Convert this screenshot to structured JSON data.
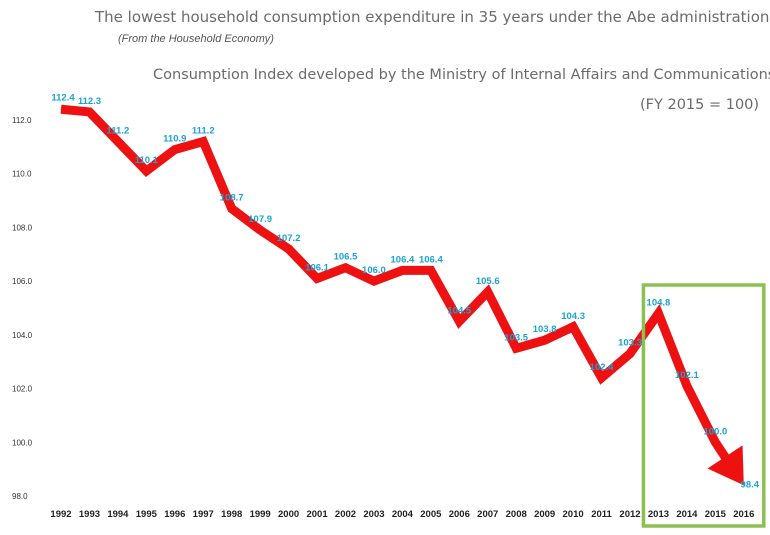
{
  "header": {
    "title": "The lowest household consumption expenditure in 35 years under the Abe administration",
    "subtitle": "(From the Household Economy)",
    "index_title": "Consumption Index developed by the Ministry of Internal Affairs and Communications",
    "base_note": "(FY 2015 = 100)"
  },
  "colors": {
    "line": "#ee1111",
    "data_label": "#1aa3d6",
    "highlight_box": "#8cc152",
    "axis_text": "#333333"
  },
  "chart_data": {
    "type": "line",
    "title": "Consumption Index developed by the Ministry of Internal Affairs and Communications",
    "ylabel": "",
    "xlabel": "",
    "categories": [
      "1992",
      "1993",
      "1994",
      "1995",
      "1996",
      "1997",
      "1998",
      "1999",
      "2000",
      "2001",
      "2002",
      "2003",
      "2004",
      "2005",
      "2006",
      "2007",
      "2008",
      "2009",
      "2010",
      "2011",
      "2012",
      "2013",
      "2014",
      "2015",
      "2016"
    ],
    "values": [
      112.4,
      112.3,
      111.2,
      110.1,
      110.9,
      111.2,
      108.7,
      107.9,
      107.2,
      106.1,
      106.5,
      106.0,
      106.4,
      106.4,
      104.5,
      105.6,
      103.5,
      103.8,
      104.3,
      102.4,
      103.3,
      104.8,
      102.1,
      100.0,
      98.4
    ],
    "labels": [
      "112.4",
      "112.3",
      "111.2",
      "110.1",
      "110.9",
      "111.2",
      "108.7",
      "107.9",
      "107.2",
      "106.1",
      "106.5",
      "106.0",
      "106.4",
      "106.4",
      "104.5",
      "105.6",
      "103.5",
      "103.8",
      "104.3",
      "102.4",
      "103.3",
      "104.8",
      "102.1",
      "100.0",
      "98.4"
    ],
    "yticks": [
      "112.0",
      "110.0",
      "108.0",
      "106.0",
      "104.0",
      "102.0",
      "100.0",
      "98.0"
    ],
    "ylim": [
      98,
      112
    ],
    "highlight_range": [
      "2013",
      "2016"
    ],
    "grid": false,
    "final_arrow": true
  }
}
